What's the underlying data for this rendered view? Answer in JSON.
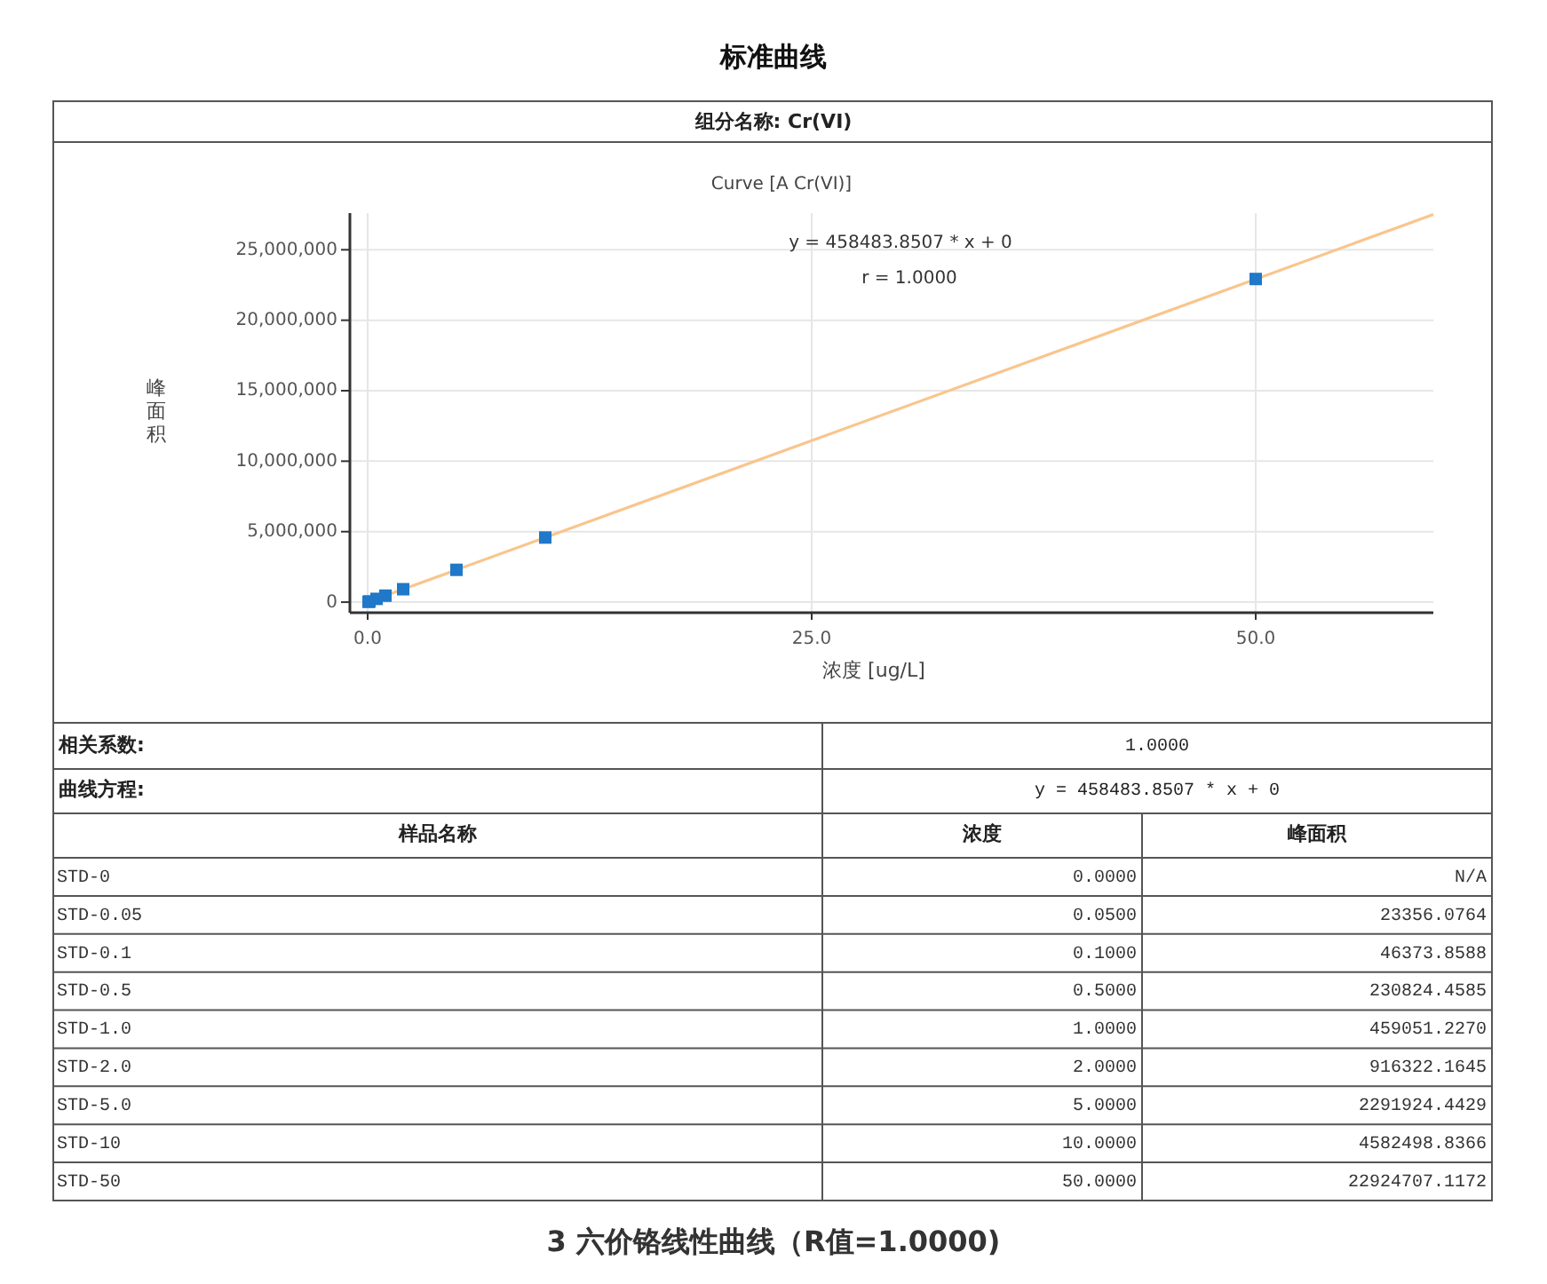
{
  "chart_data": {
    "type": "scatter",
    "title": "标准曲线",
    "subtitle": "组分名称: Cr(VI)",
    "xlabel": "浓度 [ug/L]",
    "ylabel": "峰面积",
    "xlim": [
      -1,
      60
    ],
    "xticks": [
      {
        "value": 0,
        "label": "0.0"
      },
      {
        "value": 25,
        "label": "25.0"
      },
      {
        "value": 50,
        "label": "50.0"
      }
    ],
    "ylim": [
      -750000,
      27600000
    ],
    "yticks": [
      0,
      {
        "value": 5000000,
        "label": "5,000,000"
      },
      {
        "value": 10000000,
        "label": "10,000,000"
      },
      {
        "value": 15000000,
        "label": "15,000,000"
      },
      {
        "value": 20000000,
        "label": "20,000,000"
      },
      {
        "value": 25000000,
        "label": "25,000,000"
      }
    ],
    "grid": true,
    "series": [
      {
        "type": "line",
        "color": "#f9c58d",
        "line_style": "solid",
        "x": [
          0,
          60
        ],
        "values": [
          0,
          27500000
        ]
      },
      {
        "color": "#1f78c8",
        "marker": "square",
        "x": [
          0.05,
          0.1,
          0.5,
          1,
          2,
          5,
          10,
          50
        ],
        "values": [
          23356.0764,
          46373.8588,
          230824.4585,
          459051.227,
          916322.1645,
          2291924.4429,
          4582498.8366,
          22924707.1172
        ]
      }
    ],
    "annotations": [
      "Curve [A Cr(VI)]",
      "y = 458483.8507 * x + 0",
      "r = 1.0000",
      "相关系数:",
      "1.0000",
      "曲线方程:",
      "y = 458483.8507 * x + 0",
      "样品名称",
      "浓度",
      "峰面积",
      "STD-0",
      "0.0000",
      "N/A",
      "STD-0.05",
      "0.0500",
      "23356.0764",
      "STD-0.1",
      "0.1000",
      "46373.8588",
      "STD-0.5",
      "0.5000",
      "230824.4585",
      "STD-1.0",
      "1.0000",
      "459051.2270",
      "STD-2.0",
      "2.0000",
      "916322.1645",
      "STD-5.0",
      "5.0000",
      "2291924.4429",
      "STD-10",
      "10.0000",
      "4582498.8366",
      "STD-50",
      "50.0000",
      "22924707.1172",
      "3 六价铬线性曲线（R值=1.0000)"
    ]
  }
}
